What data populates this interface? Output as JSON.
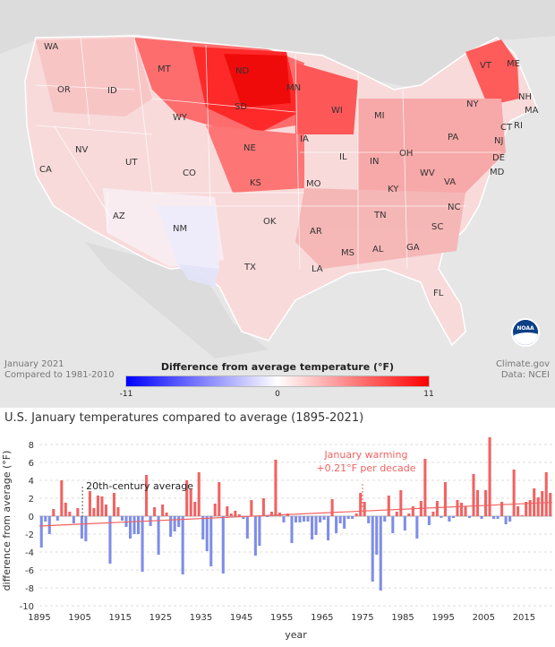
{
  "map": {
    "caption_left_line1": "January 2021",
    "caption_left_line2": "Compared to 1981-2010",
    "caption_right_line1": "Climate.gov",
    "caption_right_line2": "Data: NCEI",
    "scale_title": "Difference from average temperature (°F)",
    "scale_min": "-11",
    "scale_mid": "0",
    "scale_max": "11",
    "logo_text": "NOAA",
    "colors": {
      "cold": "#0000ff",
      "neutral": "#ffffff",
      "warm": "#ff0000",
      "land_bg": "#e6e6e6"
    },
    "states": [
      {
        "abbr": "WA",
        "anomaly": 4
      },
      {
        "abbr": "OR",
        "anomaly": 3
      },
      {
        "abbr": "ID",
        "anomaly": 4
      },
      {
        "abbr": "MT",
        "anomaly": 7
      },
      {
        "abbr": "ND",
        "anomaly": 11
      },
      {
        "abbr": "SD",
        "anomaly": 10
      },
      {
        "abbr": "MN",
        "anomaly": 10
      },
      {
        "abbr": "WI",
        "anomaly": 7
      },
      {
        "abbr": "MI",
        "anomaly": 6
      },
      {
        "abbr": "WY",
        "anomaly": 4
      },
      {
        "abbr": "NE",
        "anomaly": 7
      },
      {
        "abbr": "IA",
        "anomaly": 7
      },
      {
        "abbr": "NV",
        "anomaly": 2
      },
      {
        "abbr": "CA",
        "anomaly": 2
      },
      {
        "abbr": "UT",
        "anomaly": 1
      },
      {
        "abbr": "CO",
        "anomaly": 1
      },
      {
        "abbr": "KS",
        "anomaly": 6
      },
      {
        "abbr": "MO",
        "anomaly": 5
      },
      {
        "abbr": "IL",
        "anomaly": 5
      },
      {
        "abbr": "IN",
        "anomaly": 5
      },
      {
        "abbr": "OH",
        "anomaly": 5
      },
      {
        "abbr": "PA",
        "anomaly": 5
      },
      {
        "abbr": "NY",
        "anomaly": 5
      },
      {
        "abbr": "VT",
        "anomaly": 6
      },
      {
        "abbr": "ME",
        "anomaly": 9
      },
      {
        "abbr": "NH",
        "anomaly": 6
      },
      {
        "abbr": "MA",
        "anomaly": 5
      },
      {
        "abbr": "RI",
        "anomaly": 5
      },
      {
        "abbr": "CT",
        "anomaly": 5
      },
      {
        "abbr": "NJ",
        "anomaly": 5
      },
      {
        "abbr": "DE",
        "anomaly": 5
      },
      {
        "abbr": "MD",
        "anomaly": 5
      },
      {
        "abbr": "AZ",
        "anomaly": 0
      },
      {
        "abbr": "NM",
        "anomaly": -1
      },
      {
        "abbr": "OK",
        "anomaly": 4
      },
      {
        "abbr": "AR",
        "anomaly": 4
      },
      {
        "abbr": "KY",
        "anomaly": 4
      },
      {
        "abbr": "WV",
        "anomaly": 4
      },
      {
        "abbr": "VA",
        "anomaly": 4
      },
      {
        "abbr": "TN",
        "anomaly": 4
      },
      {
        "abbr": "NC",
        "anomaly": 4
      },
      {
        "abbr": "TX",
        "anomaly": 1
      },
      {
        "abbr": "LA",
        "anomaly": 2
      },
      {
        "abbr": "MS",
        "anomaly": 3
      },
      {
        "abbr": "AL",
        "anomaly": 3
      },
      {
        "abbr": "GA",
        "anomaly": 3
      },
      {
        "abbr": "SC",
        "anomaly": 3
      },
      {
        "abbr": "FL",
        "anomaly": 2
      }
    ]
  },
  "chart_data": {
    "type": "bar",
    "title": "U.S. January temperatures compared to average (1895-2021)",
    "xlabel": "year",
    "ylabel": "difference from average (°F)",
    "ylim": [
      -10,
      9
    ],
    "xlim": [
      1895,
      2021
    ],
    "yticks": [
      "8",
      "6",
      "4",
      "2",
      "0",
      "-2",
      "-4",
      "-6",
      "-8",
      "-10"
    ],
    "xticks": [
      "1895",
      "1905",
      "1915",
      "1925",
      "1935",
      "1945",
      "1955",
      "1965",
      "1975",
      "1985",
      "1995",
      "2005",
      "2015"
    ],
    "x": [
      1895,
      1896,
      1897,
      1898,
      1899,
      1900,
      1901,
      1902,
      1903,
      1904,
      1905,
      1906,
      1907,
      1908,
      1909,
      1910,
      1911,
      1912,
      1913,
      1914,
      1915,
      1916,
      1917,
      1918,
      1919,
      1920,
      1921,
      1922,
      1923,
      1924,
      1925,
      1926,
      1927,
      1928,
      1929,
      1930,
      1931,
      1932,
      1933,
      1934,
      1935,
      1936,
      1937,
      1938,
      1939,
      1940,
      1941,
      1942,
      1943,
      1944,
      1945,
      1946,
      1947,
      1948,
      1949,
      1950,
      1951,
      1952,
      1953,
      1954,
      1955,
      1956,
      1957,
      1958,
      1959,
      1960,
      1961,
      1962,
      1963,
      1964,
      1965,
      1966,
      1967,
      1968,
      1969,
      1970,
      1971,
      1972,
      1973,
      1974,
      1975,
      1976,
      1977,
      1978,
      1979,
      1980,
      1981,
      1982,
      1983,
      1984,
      1985,
      1986,
      1987,
      1988,
      1989,
      1990,
      1991,
      1992,
      1993,
      1994,
      1995,
      1996,
      1997,
      1998,
      1999,
      2000,
      2001,
      2002,
      2003,
      2004,
      2005,
      2006,
      2007,
      2008,
      2009,
      2010,
      2011,
      2012,
      2013,
      2014,
      2015,
      2016,
      2017,
      2018,
      2019,
      2020,
      2021
    ],
    "values": [
      -3.5,
      -0.6,
      -2.0,
      0.8,
      -0.5,
      4.0,
      1.5,
      0.5,
      -0.8,
      0.9,
      -2.5,
      -2.8,
      2.8,
      0.9,
      2.3,
      2.2,
      1.3,
      -5.3,
      2.6,
      1.0,
      -0.5,
      -1.2,
      -2.5,
      -2.0,
      -2.0,
      -6.2,
      4.6,
      -1.1,
      1.0,
      -4.3,
      1.3,
      0.4,
      -2.3,
      -1.7,
      -1.2,
      -6.5,
      4.0,
      3.0,
      1.6,
      4.9,
      -2.6,
      -3.9,
      -5.6,
      1.4,
      3.8,
      -6.4,
      1.1,
      0.3,
      0.6,
      0.2,
      -0.3,
      -2.5,
      1.8,
      -4.4,
      -3.3,
      2.0,
      -0.1,
      0.5,
      6.3,
      0.4,
      -0.7,
      0.3,
      -3.0,
      -0.7,
      -0.7,
      -0.6,
      -0.6,
      -2.6,
      -2.1,
      -0.7,
      -0.4,
      -2.7,
      1.9,
      -1.9,
      -0.8,
      -1.4,
      -0.3,
      -0.3,
      0.3,
      2.6,
      1.6,
      -0.8,
      -7.3,
      -4.3,
      -8.3,
      -0.6,
      2.3,
      -1.9,
      0.5,
      2.9,
      -1.6,
      0.3,
      1.1,
      -2.5,
      1.7,
      6.4,
      -1.0,
      0.5,
      1.7,
      -0.2,
      3.8,
      -0.6,
      -0.2,
      1.8,
      1.5,
      1.1,
      -0.2,
      4.7,
      2.9,
      -0.3,
      2.9,
      8.8,
      -0.3,
      -0.3,
      1.6,
      -0.9,
      -0.6,
      5.2,
      1.1,
      0.1,
      1.6,
      1.8,
      3.1,
      2.1,
      2.8,
      4.9,
      2.6
    ],
    "positive_color": "#f26262",
    "negative_color": "#7f8de8",
    "average_label": "20th-century average",
    "annotation_line1": "January warming",
    "annotation_line2": "+0.21°F per decade",
    "trend_per_decade": 0.21
  }
}
